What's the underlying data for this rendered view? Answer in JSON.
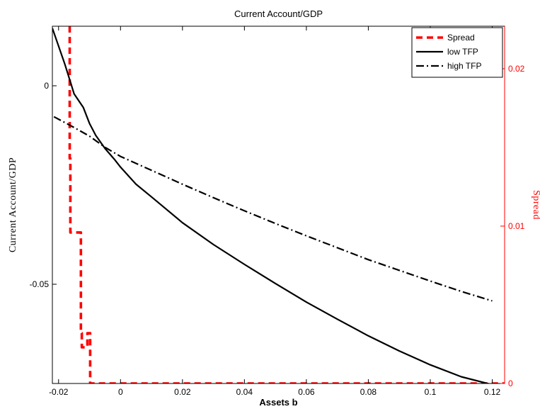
{
  "chart_data": {
    "type": "line",
    "title": "Current Account/GDP",
    "xlabel": "Assets b",
    "ylabel": "Current Account/GDP",
    "ylabel_right": "Spread",
    "xlim": [
      -0.022,
      0.124
    ],
    "ylim": [
      -0.075,
      0.015
    ],
    "ylim_right": [
      0,
      0.0227
    ],
    "grid": false,
    "legend_position": "top-right",
    "x_ticks": [
      {
        "value": -0.02,
        "label": "-0.02"
      },
      {
        "value": 0,
        "label": "0"
      },
      {
        "value": 0.02,
        "label": "0.02"
      },
      {
        "value": 0.04,
        "label": "0.04"
      },
      {
        "value": 0.06,
        "label": "0.06"
      },
      {
        "value": 0.08,
        "label": "0.08"
      },
      {
        "value": 0.1,
        "label": "0.1"
      },
      {
        "value": 0.12,
        "label": "0.12"
      }
    ],
    "y_ticks": [
      {
        "value": 0,
        "label": "0"
      },
      {
        "value": -0.05,
        "label": "-0.05"
      }
    ],
    "y_ticks_right": [
      {
        "value": 0,
        "label": "0"
      },
      {
        "value": 0.01,
        "label": "0.01"
      },
      {
        "value": 0.02,
        "label": "0.02"
      }
    ],
    "colors": {
      "spread": "#ff0000",
      "low": "#000000",
      "high": "#000000",
      "axis": "#000000",
      "right_axis": "#ff0000"
    },
    "series": [
      {
        "name": "Spread",
        "axis": "right",
        "style": "dashed",
        "x": [
          -0.0164,
          -0.0164,
          -0.0162,
          -0.0162,
          -0.0128,
          -0.0128,
          -0.0125,
          -0.0125,
          -0.0107,
          -0.0107,
          -0.0098,
          -0.0098,
          0.124
        ],
        "y": [
          0.0227,
          0.0143,
          0.0143,
          0.0096,
          0.0096,
          0.0032,
          0.0032,
          0.0023,
          0.0023,
          0.0032,
          0.0032,
          0.0,
          0.0
        ]
      },
      {
        "name": "low TFP",
        "axis": "left",
        "style": "solid",
        "x": [
          -0.022,
          -0.018,
          -0.016,
          -0.015,
          -0.012,
          -0.01,
          -0.008,
          -0.005,
          -0.002,
          0.0,
          0.005,
          0.01,
          0.02,
          0.03,
          0.04,
          0.05,
          0.06,
          0.07,
          0.08,
          0.09,
          0.1,
          0.11,
          0.12
        ],
        "y": [
          0.0145,
          0.0055,
          0.0005,
          -0.002,
          -0.0055,
          -0.0095,
          -0.0125,
          -0.0158,
          -0.0185,
          -0.0205,
          -0.0248,
          -0.028,
          -0.0345,
          -0.04,
          -0.045,
          -0.0498,
          -0.0545,
          -0.0588,
          -0.063,
          -0.0668,
          -0.0703,
          -0.0733,
          -0.0753
        ]
      },
      {
        "name": "high TFP",
        "axis": "left",
        "style": "dashdot",
        "x": [
          -0.0215,
          -0.015,
          -0.01,
          -0.005,
          0.0,
          0.01,
          0.02,
          0.03,
          0.04,
          0.05,
          0.06,
          0.07,
          0.08,
          0.09,
          0.1,
          0.11,
          0.12
        ],
        "y": [
          -0.0078,
          -0.0105,
          -0.0127,
          -0.0155,
          -0.0178,
          -0.0213,
          -0.0248,
          -0.0282,
          -0.0315,
          -0.0347,
          -0.0378,
          -0.0408,
          -0.0438,
          -0.0465,
          -0.0492,
          -0.0518,
          -0.0542
        ]
      }
    ]
  }
}
